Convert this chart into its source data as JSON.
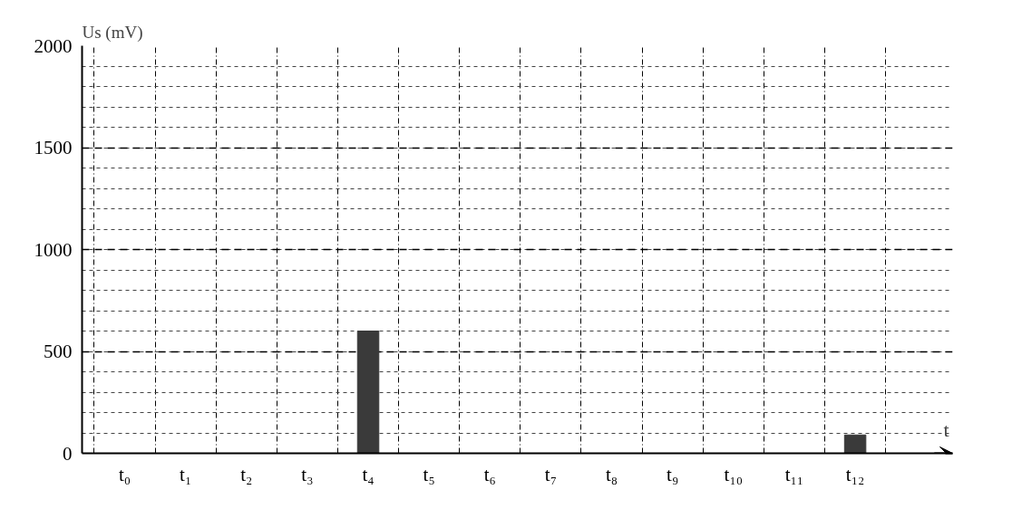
{
  "chart_data": {
    "type": "bar",
    "xlabel": "t",
    "ylabel": "Us (mV)",
    "categories": [
      "t₀",
      "t₁",
      "t₂",
      "t₃",
      "t₄",
      "t₅",
      "t₆",
      "t₇",
      "t₈",
      "t₉",
      "t₁₀",
      "t₁₁",
      "t₁₂"
    ],
    "values": [
      0,
      0,
      0,
      0,
      600,
      0,
      0,
      0,
      0,
      0,
      0,
      0,
      90
    ],
    "color": "#3a3a3a",
    "ylim": [
      0,
      2000
    ],
    "yticks": [
      0,
      500,
      1000,
      1500,
      2000
    ],
    "grid": true
  }
}
